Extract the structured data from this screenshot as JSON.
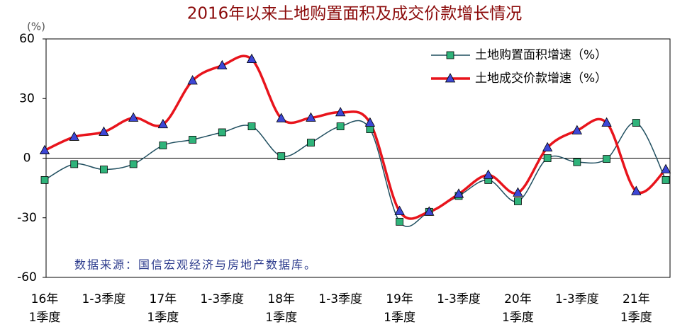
{
  "chart_data": {
    "type": "line",
    "title": "2016年以来土地购置面积及成交价款增长情况",
    "y_label": "(%)",
    "annotation": "数据来源：国信宏观经济与房地产数据库。",
    "categories": [
      "16年\n1季度",
      null,
      "1-3季度",
      null,
      "17年\n1季度",
      null,
      "1-3季度",
      null,
      "18年\n1季度",
      null,
      "1-3季度",
      null,
      "19年\n1季度",
      null,
      "1-3季度",
      null,
      "20年\n1季度",
      null,
      "1-3季度",
      null,
      "21年\n1季度",
      null
    ],
    "series": [
      {
        "name": "土地购置面积增速（%）",
        "color": "#1f4e5f",
        "marker_color": "#2fb37a",
        "marker": "square",
        "values": [
          -11,
          -3,
          -5.7,
          -3,
          6.4,
          9.3,
          13,
          16,
          1,
          7.8,
          16,
          14.6,
          -32,
          -27,
          -19,
          -11,
          -21.7,
          0,
          -2,
          -0.4,
          17.8,
          -11
        ]
      },
      {
        "name": "土地成交价款增速（%）",
        "color": "#e8141c",
        "marker_color": "#3d47d6",
        "marker": "triangle",
        "values": [
          3.9,
          10.7,
          13.2,
          20.3,
          17,
          39,
          46.6,
          49.8,
          20,
          20.3,
          23,
          17.8,
          -26.7,
          -27,
          -18,
          -8.5,
          -17.4,
          5.3,
          13.9,
          17.8,
          -16.7,
          -5.7
        ]
      }
    ],
    "ylim": [
      -60,
      60
    ],
    "yticks": [
      -60,
      -30,
      0,
      30,
      60
    ],
    "legend": "top-right"
  }
}
